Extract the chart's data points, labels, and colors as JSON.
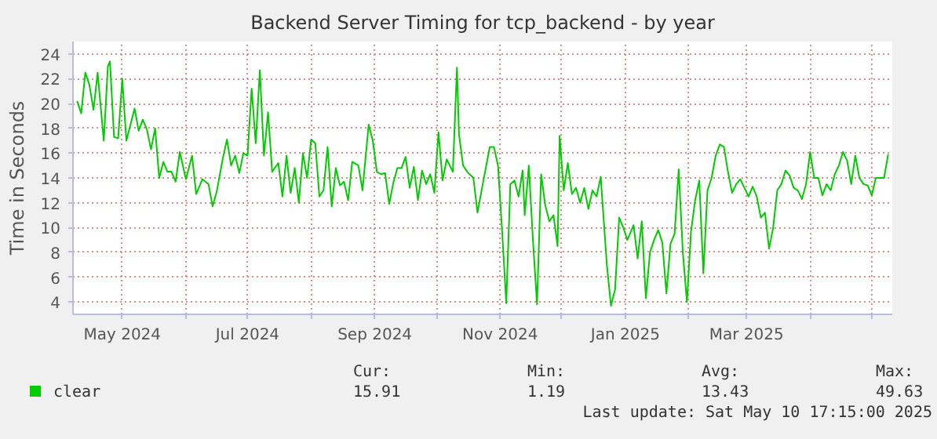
{
  "chart_data": {
    "type": "line",
    "title": "Backend Server Timing for tcp_backend - by year",
    "ylabel": "Time in Seconds",
    "xlim": [
      "2024-04-07",
      "2025-05-11"
    ],
    "xticks": [
      {
        "value": "2024-05-01",
        "label": "May 2024"
      },
      {
        "value": "2024-06-01",
        "label": null
      },
      {
        "value": "2024-07-01",
        "label": "Jul 2024"
      },
      {
        "value": "2024-08-01",
        "label": null
      },
      {
        "value": "2024-09-01",
        "label": "Sep 2024"
      },
      {
        "value": "2024-10-01",
        "label": null
      },
      {
        "value": "2024-11-01",
        "label": "Nov 2024"
      },
      {
        "value": "2024-12-01",
        "label": null
      },
      {
        "value": "2025-01-01",
        "label": "Jan 2025"
      },
      {
        "value": "2025-02-01",
        "label": null
      },
      {
        "value": "2025-03-01",
        "label": "Mar 2025"
      },
      {
        "value": "2025-04-01",
        "label": null
      },
      {
        "value": "2025-05-01",
        "label": null
      }
    ],
    "ylim": [
      3,
      25
    ],
    "yticks": [
      4,
      6,
      8,
      10,
      12,
      14,
      16,
      18,
      20,
      22,
      24
    ],
    "grid": true,
    "legend": "bottom left",
    "annotations": [
      "Cur:",
      "15.91",
      "Min:",
      "1.19",
      "Avg:",
      "13.43",
      "Max:",
      "49.63",
      "Last update: Sat May 10 17:15:00 2025"
    ],
    "x": [
      "2024-04-09",
      "2024-04-11",
      "2024-04-13",
      "2024-04-15",
      "2024-04-17",
      "2024-04-19",
      "2024-04-22",
      "2024-04-24",
      "2024-04-25",
      "2024-04-27",
      "2024-04-29",
      "2024-05-01",
      "2024-05-03",
      "2024-05-05",
      "2024-05-07",
      "2024-05-09",
      "2024-05-11",
      "2024-05-13",
      "2024-05-15",
      "2024-05-17",
      "2024-05-19",
      "2024-05-21",
      "2024-05-23",
      "2024-05-25",
      "2024-05-27",
      "2024-05-29",
      "2024-06-01",
      "2024-06-04",
      "2024-06-06",
      "2024-06-09",
      "2024-06-12",
      "2024-06-14",
      "2024-06-16",
      "2024-06-19",
      "2024-06-21",
      "2024-06-23",
      "2024-06-25",
      "2024-06-27",
      "2024-06-29",
      "2024-07-01",
      "2024-07-03",
      "2024-07-05",
      "2024-07-07",
      "2024-07-09",
      "2024-07-11",
      "2024-07-13",
      "2024-07-16",
      "2024-07-18",
      "2024-07-20",
      "2024-07-22",
      "2024-07-24",
      "2024-07-26",
      "2024-07-28",
      "2024-07-30",
      "2024-08-01",
      "2024-08-03",
      "2024-08-05",
      "2024-08-07",
      "2024-08-09",
      "2024-08-11",
      "2024-08-13",
      "2024-08-15",
      "2024-08-17",
      "2024-08-19",
      "2024-08-21",
      "2024-08-24",
      "2024-08-26",
      "2024-08-29",
      "2024-08-31",
      "2024-09-02",
      "2024-09-04",
      "2024-09-06",
      "2024-09-08",
      "2024-09-10",
      "2024-09-12",
      "2024-09-14",
      "2024-09-16",
      "2024-09-18",
      "2024-09-20",
      "2024-09-22",
      "2024-09-24",
      "2024-09-26",
      "2024-09-28",
      "2024-09-30",
      "2024-10-02",
      "2024-10-04",
      "2024-10-06",
      "2024-10-09",
      "2024-10-11",
      "2024-10-12",
      "2024-10-14",
      "2024-10-16",
      "2024-10-19",
      "2024-10-21",
      "2024-10-24",
      "2024-10-27",
      "2024-10-29",
      "2024-10-31",
      "2024-11-02",
      "2024-11-04",
      "2024-11-06",
      "2024-11-08",
      "2024-11-10",
      "2024-11-12",
      "2024-11-13",
      "2024-11-15",
      "2024-11-17",
      "2024-11-19",
      "2024-11-21",
      "2024-11-23",
      "2024-11-25",
      "2024-11-27",
      "2024-11-29",
      "2024-11-30",
      "2024-12-02",
      "2024-12-04",
      "2024-12-06",
      "2024-12-08",
      "2024-12-10",
      "2024-12-12",
      "2024-12-14",
      "2024-12-16",
      "2024-12-18",
      "2024-12-20",
      "2024-12-23",
      "2024-12-25",
      "2024-12-27",
      "2024-12-29",
      "2024-12-31",
      "2025-01-02",
      "2025-01-05",
      "2025-01-07",
      "2025-01-09",
      "2025-01-11",
      "2025-01-13",
      "2025-01-15",
      "2025-01-17",
      "2025-01-19",
      "2025-01-21",
      "2025-01-23",
      "2025-01-25",
      "2025-01-27",
      "2025-01-29",
      "2025-01-31",
      "2025-02-02",
      "2025-02-04",
      "2025-02-06",
      "2025-02-08",
      "2025-02-10",
      "2025-02-12",
      "2025-02-14",
      "2025-02-16",
      "2025-02-18",
      "2025-02-20",
      "2025-02-22",
      "2025-02-24",
      "2025-02-26",
      "2025-02-28",
      "2025-03-02",
      "2025-03-04",
      "2025-03-06",
      "2025-03-08",
      "2025-03-10",
      "2025-03-12",
      "2025-03-14",
      "2025-03-16",
      "2025-03-18",
      "2025-03-20",
      "2025-03-22",
      "2025-03-24",
      "2025-03-26",
      "2025-03-28",
      "2025-03-30",
      "2025-04-01",
      "2025-04-03",
      "2025-04-05",
      "2025-04-07",
      "2025-04-09",
      "2025-04-11",
      "2025-04-13",
      "2025-04-15",
      "2025-04-17",
      "2025-04-19",
      "2025-04-21",
      "2025-04-23",
      "2025-04-25",
      "2025-04-27",
      "2025-04-29",
      "2025-05-01",
      "2025-05-03",
      "2025-05-05",
      "2025-05-07",
      "2025-05-09"
    ],
    "series": [
      {
        "name": "clear",
        "color": "#00cc00",
        "values": [
          20.2,
          19.2,
          22.5,
          21.5,
          19.5,
          22.5,
          17,
          23,
          23.4,
          17.3,
          17.2,
          22,
          17,
          18.3,
          19.6,
          17.8,
          18.7,
          17.9,
          16.3,
          18,
          14,
          15.3,
          14.5,
          14.5,
          13.7,
          16.1,
          13.9,
          15.8,
          12.7,
          13.9,
          13.5,
          11.7,
          12.9,
          15.6,
          17.1,
          15,
          15.8,
          14.4,
          16,
          15.8,
          21.2,
          16.8,
          22.7,
          15.8,
          19.3,
          14.5,
          15.2,
          12.5,
          15.8,
          12.8,
          14.8,
          12,
          16,
          14,
          17.1,
          16.8,
          12.5,
          13,
          16.5,
          11.7,
          14.8,
          13.4,
          13.7,
          12.2,
          15.3,
          15,
          13,
          18.3,
          17,
          14.5,
          14.3,
          14.4,
          11.9,
          13.6,
          14.8,
          14.8,
          15.7,
          13.2,
          14.9,
          12.2,
          14.6,
          13.5,
          14.3,
          12.8,
          17.7,
          13.8,
          15.5,
          14.5,
          22.9,
          17.5,
          15,
          14.5,
          14,
          11.2,
          13.9,
          16.5,
          16.5,
          15,
          9.7,
          3.9,
          13.5,
          13.8,
          12.5,
          14.6,
          11,
          15,
          9,
          3.8,
          14.3,
          11.8,
          10.5,
          11,
          8.5,
          17.4,
          13,
          15.2,
          12.7,
          13.2,
          12,
          13.2,
          11.5,
          13,
          12.5,
          14.1,
          7,
          3.7,
          5,
          10.8,
          10,
          9,
          10.2,
          7.5,
          10.5,
          4.3,
          8,
          9,
          9.8,
          8.8,
          4.7,
          8.7,
          9.5,
          14.7,
          8,
          4,
          9.7,
          12.2,
          13.8,
          6.3,
          13,
          14,
          15.8,
          16.7,
          16.5,
          14.5,
          12.8,
          13.5,
          13.9,
          13.2,
          12.5,
          13.3,
          12.5,
          10.8,
          11.2,
          8.3,
          10,
          13,
          13.5,
          14.6,
          14.2,
          13.2,
          13,
          12.3,
          13.5,
          16.1,
          14,
          14,
          12.6,
          13.5,
          13,
          14.3,
          15,
          16.1,
          15.4,
          13.5,
          15.8,
          14,
          13.5,
          13.4,
          12.6,
          14,
          14,
          14,
          15.9
        ]
      }
    ]
  }
}
